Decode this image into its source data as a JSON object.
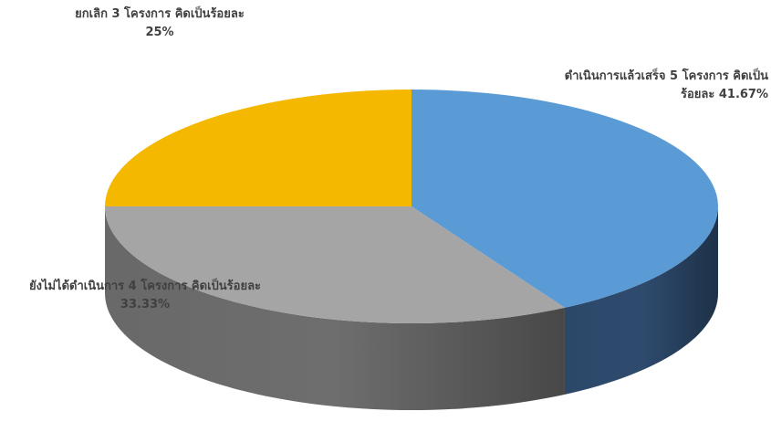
{
  "chart_data": {
    "type": "pie",
    "title": "",
    "slices": [
      {
        "name": "ดำเนินการแล้วเสร็จ 5 โครงการ",
        "count": 5,
        "value": 41.67,
        "label_line1": "ดำเนินการแล้วเสร็จ 5 โครงการ  คิดเป็น",
        "label_line2": "ร้อยละ 41.67%",
        "color": "#5B9BD5",
        "side_color": "#2E4B6E"
      },
      {
        "name": "ยังไม่ได้ดำเนินการ 4 โครงการ",
        "count": 4,
        "value": 33.33,
        "label_line1": "ยังไม่ได้ดำเนินการ 4 โครงการ  คิดเป็นร้อยละ",
        "label_line2": "33.33%",
        "color": "#A5A5A5",
        "side_color": "#6E6E6E"
      },
      {
        "name": "ยกเลิก 3 โครงการ",
        "count": 3,
        "value": 25,
        "label_line1": "ยกเลิก 3 โครงการ  คิดเป็นร้อยละ",
        "label_line2": "25%",
        "color": "#F5B800",
        "side_color": "#A07A00"
      }
    ],
    "grid": false,
    "legend": "none"
  }
}
